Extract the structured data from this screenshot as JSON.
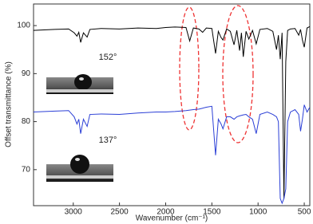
{
  "chart_data": {
    "type": "line",
    "xlabel": "Wavenumber (cm⁻¹)",
    "ylabel": "Offset transmittance (%)",
    "annotations": [
      "152°",
      "137°"
    ],
    "x": [
      3430,
      3200,
      3050,
      2990,
      2960,
      2940,
      2920,
      2890,
      2850,
      2820,
      2700,
      2500,
      2300,
      2100,
      2000,
      1900,
      1780,
      1740,
      1700,
      1640,
      1600,
      1560,
      1500,
      1460,
      1430,
      1400,
      1380,
      1340,
      1300,
      1260,
      1230,
      1200,
      1180,
      1160,
      1130,
      1100,
      1060,
      1020,
      980,
      900,
      840,
      800,
      780,
      760,
      740,
      720,
      700,
      680,
      650,
      600,
      560,
      540,
      520,
      500,
      470,
      440
    ],
    "series": [
      {
        "color": "#000000",
        "values": [
          99.0,
          99.2,
          99.3,
          98.5,
          97.8,
          98.6,
          96.5,
          98.5,
          97.6,
          99.2,
          99.4,
          99.3,
          99.5,
          99.4,
          99.6,
          99.7,
          99.6,
          96.8,
          99.5,
          99.3,
          98.6,
          99.5,
          99.4,
          94.2,
          98.8,
          97.5,
          97.0,
          99.3,
          98.8,
          96.0,
          99.0,
          94.8,
          98.5,
          93.5,
          98.8,
          97.2,
          99.0,
          96.2,
          99.2,
          99.4,
          98.8,
          95.0,
          98.0,
          93.0,
          98.5,
          64.0,
          92.5,
          99.0,
          99.3,
          99.4,
          98.0,
          99.2,
          97.0,
          95.5,
          99.5,
          99.8
        ]
      },
      {
        "color": "#2b3fd6",
        "values": [
          82.0,
          82.2,
          82.3,
          81.0,
          79.5,
          80.5,
          77.5,
          80.5,
          79.0,
          81.5,
          81.6,
          81.5,
          81.8,
          82.0,
          82.0,
          82.1,
          82.3,
          82.4,
          82.5,
          82.6,
          82.8,
          83.0,
          83.2,
          73.0,
          80.5,
          79.5,
          78.5,
          81.0,
          81.0,
          80.5,
          81.0,
          81.2,
          81.3,
          81.4,
          81.5,
          81.0,
          80.5,
          77.5,
          81.5,
          82.0,
          81.5,
          81.0,
          80.0,
          64.0,
          63.0,
          64.0,
          66.0,
          80.0,
          82.0,
          82.5,
          81.5,
          78.0,
          80.5,
          83.5,
          82.0,
          83.0
        ]
      }
    ],
    "xlim": [
      3430,
      440
    ],
    "ylim": [
      62.5,
      104.5
    ],
    "xticks": [
      3000,
      2500,
      2000,
      1500,
      1000,
      500
    ],
    "yticks": [
      70,
      80,
      90,
      100
    ]
  }
}
